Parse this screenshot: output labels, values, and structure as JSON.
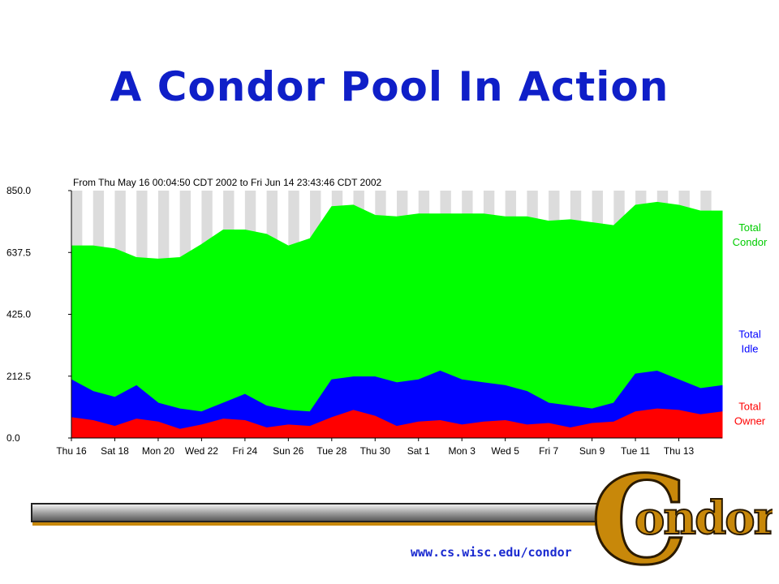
{
  "slide": {
    "title": "A Condor Pool In Action",
    "footer_url": "www.cs.wisc.edu/condor",
    "logo_text": "Condor"
  },
  "colors": {
    "title": "#0f1fc8",
    "total_condor": "#00ff00",
    "total_idle": "#0000ff",
    "total_owner": "#ff0000",
    "weekend_band": "#dcdcdc"
  },
  "chart_data": {
    "type": "area",
    "title": "From Thu May 16 00:04:50 CDT 2002 to Fri Jun 14 23:43:46 CDT 2002",
    "xlabel": "",
    "ylabel": "",
    "ylim": [
      0,
      850
    ],
    "yticks": [
      "850.0",
      "637.5",
      "425.0",
      "212.5",
      "0.0"
    ],
    "xticks": [
      "Thu 16",
      "Sat 18",
      "Mon 20",
      "Wed 22",
      "Fri 24",
      "Sun 26",
      "Tue 28",
      "Thu 30",
      "Sat 1",
      "Mon 3",
      "Wed 5",
      "Fri 7",
      "Sun 9",
      "Tue 11",
      "Thu 13"
    ],
    "legend_position": "right",
    "x_days": [
      0,
      1,
      2,
      3,
      4,
      5,
      6,
      7,
      8,
      9,
      10,
      11,
      12,
      13,
      14,
      15,
      16,
      17,
      18,
      19,
      20,
      21,
      22,
      23,
      24,
      25,
      26,
      27,
      28,
      29,
      30
    ],
    "series": [
      {
        "name": "Total Condor",
        "values": [
          660,
          660,
          650,
          620,
          615,
          620,
          665,
          715,
          715,
          700,
          660,
          685,
          795,
          800,
          765,
          760,
          770,
          770,
          770,
          770,
          760,
          760,
          745,
          750,
          740,
          730,
          800,
          810,
          800,
          780,
          780
        ]
      },
      {
        "name": "Total Idle",
        "values": [
          200,
          160,
          140,
          180,
          120,
          100,
          90,
          120,
          150,
          110,
          95,
          90,
          200,
          210,
          210,
          190,
          200,
          230,
          200,
          190,
          180,
          160,
          120,
          110,
          100,
          120,
          220,
          230,
          200,
          170,
          180
        ]
      },
      {
        "name": "Total Owner",
        "values": [
          70,
          60,
          40,
          65,
          55,
          30,
          45,
          65,
          60,
          35,
          45,
          40,
          70,
          95,
          75,
          40,
          55,
          60,
          45,
          55,
          60,
          45,
          50,
          35,
          50,
          55,
          90,
          100,
          95,
          80,
          90
        ]
      }
    ]
  }
}
